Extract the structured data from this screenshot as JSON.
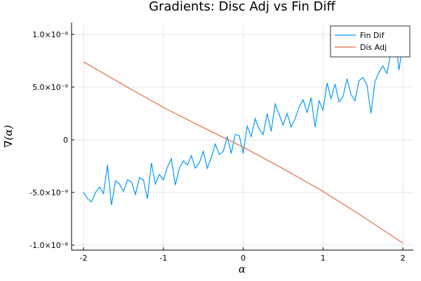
{
  "chart_data": {
    "type": "line",
    "title": "Gradients: Disc Adj vs Fin Diff",
    "xlabel": "α",
    "ylabel": "∇(α)",
    "xlim": [
      -2.15,
      2.13
    ],
    "ylim": [
      -1.047e-08,
      1.113e-08
    ],
    "xticks": [
      -2,
      -1,
      0,
      1,
      2
    ],
    "yticks": [
      {
        "value": -1e-08,
        "label": "-1.0×10⁻⁸"
      },
      {
        "value": -5e-09,
        "label": "-5.0×10⁻⁹"
      },
      0,
      {
        "value": 5e-09,
        "label": "5.0×10⁻⁹"
      },
      {
        "value": 1e-08,
        "label": "1.0×10⁻⁸"
      }
    ],
    "grid": true,
    "legend": "top-right",
    "series": [
      {
        "name": "Fin Dif",
        "color": "#009af9",
        "x": [
          -2,
          -1.95,
          -1.9,
          -1.85,
          -1.8,
          -1.75,
          -1.7,
          -1.65,
          -1.6,
          -1.55,
          -1.5,
          -1.45,
          -1.4,
          -1.35,
          -1.3,
          -1.25,
          -1.2,
          -1.15,
          -1.1,
          -1.05,
          -1,
          -0.95,
          -0.9,
          -0.85,
          -0.8,
          -0.75,
          -0.7,
          -0.65,
          -0.6,
          -0.55,
          -0.5,
          -0.45,
          -0.4,
          -0.35,
          -0.3,
          -0.25,
          -0.2,
          -0.15,
          -0.1,
          -0.05,
          0,
          0.05,
          0.1,
          0.15,
          0.2,
          0.25,
          0.3,
          0.35,
          0.4,
          0.45,
          0.5,
          0.55,
          0.6,
          0.65,
          0.7,
          0.75,
          0.8,
          0.85,
          0.9,
          0.95,
          1,
          1.05,
          1.1,
          1.15,
          1.2,
          1.25,
          1.3,
          1.35,
          1.4,
          1.45,
          1.5,
          1.55,
          1.6,
          1.65,
          1.7,
          1.75,
          1.8,
          1.85,
          1.9,
          1.95,
          2
        ],
        "values": [
          -5e-09,
          -5.6e-09,
          -5.9e-09,
          -5e-09,
          -4.5e-09,
          -5.1e-09,
          -2.4e-09,
          -6.2e-09,
          -3.9e-09,
          -4.2e-09,
          -4.9e-09,
          -3.8e-09,
          -4e-09,
          -5.2e-09,
          -3.6e-09,
          -3.8e-09,
          -5.6e-09,
          -2.2e-09,
          -4.2e-09,
          -3.3e-09,
          -3.8e-09,
          -2.6e-09,
          -1.8e-09,
          -4.3e-09,
          -2.7e-09,
          -2e-09,
          -2.4e-09,
          -1.5e-09,
          -2.7e-09,
          -2.2e-09,
          -1.1e-09,
          -2.7e-09,
          -1.7e-09,
          -4e-10,
          -1.4e-09,
          -1.1e-09,
          3e-10,
          -1.3e-09,
          5e-10,
          4e-10,
          -1.3e-09,
          1.3e-09,
          3e-10,
          2e-09,
          1e-09,
          5e-10,
          2.5e-09,
          8e-10,
          3.4e-09,
          2.4e-09,
          1.4e-09,
          2.5e-09,
          1.2e-09,
          2e-09,
          3.1e-09,
          3.8e-09,
          2.6e-09,
          4e-09,
          1.2e-09,
          3.7e-09,
          2.8e-09,
          5.4e-09,
          3.9e-09,
          5.3e-09,
          3.6e-09,
          4.1e-09,
          5.8e-09,
          4.3e-09,
          3.7e-09,
          5.6e-09,
          5.9e-09,
          5.2e-09,
          2.5e-09,
          5.5e-09,
          6.4e-09,
          7e-09,
          6.3e-09,
          8.3e-09,
          1.03e-08,
          6.6e-09,
          9.1e-09
        ]
      },
      {
        "name": "Dis Adj",
        "color": "#e26f46",
        "x": [
          -2,
          -1.5,
          -1,
          -0.5,
          0,
          0.5,
          1,
          1.5,
          2
        ],
        "values": [
          7.4e-09,
          5.2e-09,
          3.07e-09,
          1.15e-09,
          -7e-10,
          -2.75e-09,
          -4.9e-09,
          -7.3e-09,
          -9.8e-09
        ]
      }
    ]
  }
}
